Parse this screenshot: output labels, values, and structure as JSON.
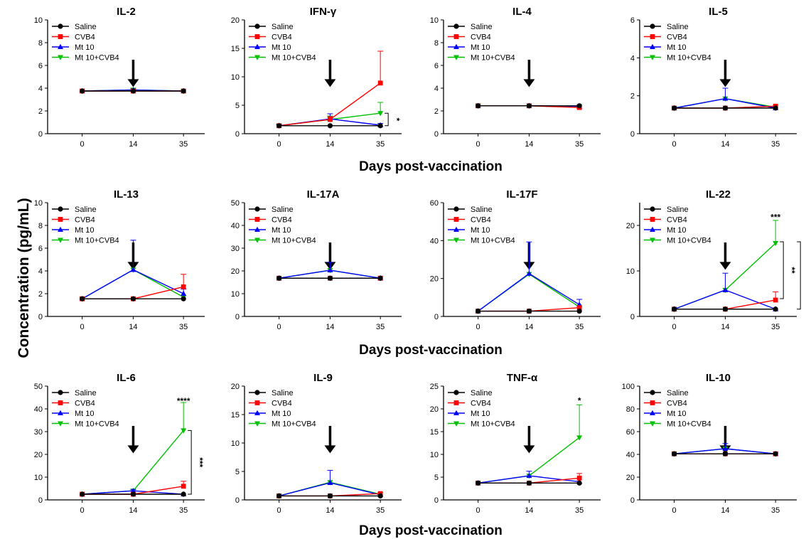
{
  "figure": {
    "ylabel": "Concentration (pg/mL)",
    "xlabel": "Days post-vaccination",
    "series_names": [
      "Saline",
      "CVB4",
      "Mt 10",
      "Mt 10+CVB4"
    ],
    "colors": {
      "Saline": "#000000",
      "CVB4": "#ff0000",
      "Mt 10": "#0000ff",
      "Mt 10+CVB4": "#00c000"
    }
  },
  "chart_data": [
    {
      "type": "line",
      "title": "IL-2",
      "categories": [
        "0",
        "14",
        "35"
      ],
      "ylim": [
        0,
        10
      ],
      "yticks": [
        0,
        2,
        4,
        6,
        8,
        10
      ],
      "arrow_at": "14",
      "legend": "top-left",
      "series": [
        {
          "name": "Saline",
          "values": [
            3.75,
            3.75,
            3.75
          ]
        },
        {
          "name": "CVB4",
          "values": [
            3.75,
            3.75,
            3.75
          ]
        },
        {
          "name": "Mt 10",
          "values": [
            3.75,
            3.85,
            3.75
          ],
          "err": [
            0,
            0.1,
            0
          ]
        },
        {
          "name": "Mt 10+CVB4",
          "values": [
            3.75,
            3.85,
            3.75
          ]
        }
      ],
      "significance": []
    },
    {
      "type": "line",
      "title": "IFN-γ",
      "categories": [
        "0",
        "14",
        "35"
      ],
      "ylim": [
        0,
        20
      ],
      "yticks": [
        0,
        5,
        10,
        15,
        20
      ],
      "arrow_at": "14",
      "legend": "top-left",
      "series": [
        {
          "name": "Saline",
          "values": [
            1.4,
            1.4,
            1.4
          ]
        },
        {
          "name": "CVB4",
          "values": [
            1.4,
            2.5,
            8.9
          ],
          "err": [
            0,
            0.5,
            5.6
          ]
        },
        {
          "name": "Mt 10",
          "values": [
            1.4,
            2.6,
            1.5
          ],
          "err": [
            0.2,
            0.9,
            0.3
          ]
        },
        {
          "name": "Mt 10+CVB4",
          "values": [
            1.4,
            2.5,
            3.6
          ],
          "err": [
            0.2,
            0.6,
            1.9
          ]
        }
      ],
      "significance": [
        {
          "type": "bracket",
          "text": "*",
          "from": 3.6,
          "to": 1.4
        }
      ]
    },
    {
      "type": "line",
      "title": "IL-4",
      "categories": [
        "0",
        "14",
        "35"
      ],
      "ylim": [
        0,
        10
      ],
      "yticks": [
        0,
        2,
        4,
        6,
        8,
        10
      ],
      "arrow_at": "14",
      "legend": "top-left",
      "series": [
        {
          "name": "Saline",
          "values": [
            2.45,
            2.45,
            2.45
          ]
        },
        {
          "name": "CVB4",
          "values": [
            2.45,
            2.45,
            2.3
          ]
        },
        {
          "name": "Mt 10",
          "values": [
            2.45,
            2.45,
            2.4
          ]
        },
        {
          "name": "Mt 10+CVB4",
          "values": [
            2.45,
            2.45,
            2.4
          ]
        }
      ],
      "significance": []
    },
    {
      "type": "line",
      "title": "IL-5",
      "categories": [
        "0",
        "14",
        "35"
      ],
      "ylim": [
        0,
        6
      ],
      "yticks": [
        0,
        2,
        4,
        6
      ],
      "arrow_at": "14",
      "legend": "top-left",
      "series": [
        {
          "name": "Saline",
          "values": [
            1.35,
            1.35,
            1.35
          ]
        },
        {
          "name": "CVB4",
          "values": [
            1.35,
            1.35,
            1.45
          ]
        },
        {
          "name": "Mt 10",
          "values": [
            1.35,
            1.85,
            1.35
          ],
          "err": [
            0,
            0.55,
            0
          ]
        },
        {
          "name": "Mt 10+CVB4",
          "values": [
            1.35,
            1.85,
            1.4
          ]
        }
      ],
      "significance": []
    },
    {
      "type": "line",
      "title": "IL-13",
      "categories": [
        "0",
        "14",
        "35"
      ],
      "ylim": [
        0,
        10
      ],
      "yticks": [
        0,
        2,
        4,
        6,
        8,
        10
      ],
      "arrow_at": "14",
      "legend": "top-left",
      "series": [
        {
          "name": "Saline",
          "values": [
            1.55,
            1.55,
            1.55
          ]
        },
        {
          "name": "CVB4",
          "values": [
            1.55,
            1.55,
            2.6
          ],
          "err": [
            0,
            0,
            1.1
          ]
        },
        {
          "name": "Mt 10",
          "values": [
            1.55,
            4.1,
            2.0
          ],
          "err": [
            0,
            2.6,
            0.4
          ]
        },
        {
          "name": "Mt 10+CVB4",
          "values": [
            1.55,
            4.1,
            1.7
          ]
        }
      ],
      "significance": []
    },
    {
      "type": "line",
      "title": "IL-17A",
      "categories": [
        "0",
        "14",
        "35"
      ],
      "ylim": [
        0,
        50
      ],
      "yticks": [
        0,
        10,
        20,
        30,
        40,
        50
      ],
      "arrow_at": "14",
      "legend": "top-left",
      "series": [
        {
          "name": "Saline",
          "values": [
            16.8,
            16.8,
            16.8
          ]
        },
        {
          "name": "CVB4",
          "values": [
            16.8,
            16.8,
            16.8
          ]
        },
        {
          "name": "Mt 10",
          "values": [
            16.8,
            20.3,
            16.8
          ],
          "err": [
            0,
            3.5,
            0
          ]
        },
        {
          "name": "Mt 10+CVB4",
          "values": [
            16.8,
            20.3,
            16.8
          ]
        }
      ],
      "significance": []
    },
    {
      "type": "line",
      "title": "IL-17F",
      "categories": [
        "0",
        "14",
        "35"
      ],
      "ylim": [
        0,
        60
      ],
      "yticks": [
        0,
        20,
        40,
        60
      ],
      "arrow_at": "14",
      "legend": "top-left",
      "series": [
        {
          "name": "Saline",
          "values": [
            2.8,
            2.8,
            2.8
          ]
        },
        {
          "name": "CVB4",
          "values": [
            2.8,
            2.8,
            4.6
          ]
        },
        {
          "name": "Mt 10",
          "values": [
            2.8,
            22.6,
            6.2
          ],
          "err": [
            0,
            16.7,
            2.8
          ]
        },
        {
          "name": "Mt 10+CVB4",
          "values": [
            2.8,
            22.3,
            5.0
          ]
        }
      ],
      "significance": []
    },
    {
      "type": "line",
      "title": "IL-22",
      "categories": [
        "0",
        "14",
        "35"
      ],
      "ylim": [
        0,
        25
      ],
      "yticks": [
        0,
        10,
        20
      ],
      "arrow_at": "14",
      "legend": "top-left",
      "series": [
        {
          "name": "Saline",
          "values": [
            1.6,
            1.6,
            1.6
          ]
        },
        {
          "name": "CVB4",
          "values": [
            1.6,
            1.6,
            3.6
          ],
          "err": [
            0,
            0,
            1.8
          ]
        },
        {
          "name": "Mt 10",
          "values": [
            1.6,
            5.8,
            1.6
          ],
          "err": [
            0,
            3.7,
            0
          ]
        },
        {
          "name": "Mt 10+CVB4",
          "values": [
            1.6,
            5.8,
            16.1
          ],
          "err": [
            0,
            0,
            5.0
          ]
        }
      ],
      "significance": [
        {
          "type": "star",
          "text": "***",
          "y": 21.8
        },
        {
          "type": "bracket",
          "text": "**",
          "from": 16.4,
          "to": 3.9
        },
        {
          "type": "bracket",
          "text": "***",
          "from": 16.4,
          "to": 1.6
        }
      ]
    },
    {
      "type": "line",
      "title": "IL-6",
      "categories": [
        "0",
        "14",
        "35"
      ],
      "ylim": [
        0,
        50
      ],
      "yticks": [
        0,
        10,
        20,
        30,
        40,
        50
      ],
      "arrow_at": "14",
      "legend": "top-left",
      "series": [
        {
          "name": "Saline",
          "values": [
            2.5,
            2.5,
            2.5
          ]
        },
        {
          "name": "CVB4",
          "values": [
            2.5,
            2.5,
            6.0
          ],
          "err": [
            0,
            0,
            2.2
          ]
        },
        {
          "name": "Mt 10",
          "values": [
            2.5,
            4.0,
            2.5
          ],
          "err": [
            0,
            0.6,
            0
          ]
        },
        {
          "name": "Mt 10+CVB4",
          "values": [
            2.5,
            4.0,
            30.5
          ],
          "err": [
            0,
            0,
            12.3
          ]
        }
      ],
      "significance": [
        {
          "type": "star",
          "text": "****",
          "y": 43.5
        },
        {
          "type": "bracket",
          "text": "***",
          "from": 30.5,
          "to": 2.5
        }
      ]
    },
    {
      "type": "line",
      "title": "IL-9",
      "categories": [
        "0",
        "14",
        "35"
      ],
      "ylim": [
        0,
        20
      ],
      "yticks": [
        0,
        5,
        10,
        15,
        20
      ],
      "arrow_at": "14",
      "legend": "top-left",
      "series": [
        {
          "name": "Saline",
          "values": [
            0.7,
            0.7,
            0.7
          ]
        },
        {
          "name": "CVB4",
          "values": [
            0.7,
            0.7,
            1.1
          ]
        },
        {
          "name": "Mt 10",
          "values": [
            0.7,
            3.0,
            0.9
          ],
          "err": [
            0,
            2.2,
            0
          ]
        },
        {
          "name": "Mt 10+CVB4",
          "values": [
            0.7,
            3.1,
            1.0
          ]
        }
      ],
      "significance": []
    },
    {
      "type": "line",
      "title": "TNF-α",
      "categories": [
        "0",
        "14",
        "35"
      ],
      "ylim": [
        0,
        25
      ],
      "yticks": [
        0,
        5,
        10,
        15,
        20,
        25
      ],
      "arrow_at": "14",
      "legend": "top-left",
      "series": [
        {
          "name": "Saline",
          "values": [
            3.7,
            3.7,
            3.7
          ]
        },
        {
          "name": "CVB4",
          "values": [
            3.7,
            3.7,
            4.8
          ],
          "err": [
            0,
            0,
            1.0
          ]
        },
        {
          "name": "Mt 10",
          "values": [
            3.7,
            5.3,
            4.0
          ],
          "err": [
            0,
            1.0,
            0
          ]
        },
        {
          "name": "Mt 10+CVB4",
          "values": [
            3.7,
            5.3,
            13.7
          ],
          "err": [
            0,
            0,
            7.2
          ]
        }
      ],
      "significance": [
        {
          "type": "star",
          "text": "*",
          "y": 21.8
        }
      ]
    },
    {
      "type": "line",
      "title": "IL-10",
      "categories": [
        "0",
        "14",
        "35"
      ],
      "ylim": [
        0,
        100
      ],
      "yticks": [
        0,
        20,
        40,
        60,
        80,
        100
      ],
      "arrow_at": "14",
      "legend": "top-left",
      "series": [
        {
          "name": "Saline",
          "values": [
            40.5,
            40.5,
            40.5
          ]
        },
        {
          "name": "CVB4",
          "values": [
            40.5,
            40.5,
            40.5
          ]
        },
        {
          "name": "Mt 10",
          "values": [
            40.5,
            45.0,
            40.5
          ],
          "err": [
            0,
            4.5,
            0
          ]
        },
        {
          "name": "Mt 10+CVB4",
          "values": [
            40.5,
            45.0,
            40.5
          ]
        }
      ],
      "significance": []
    }
  ]
}
